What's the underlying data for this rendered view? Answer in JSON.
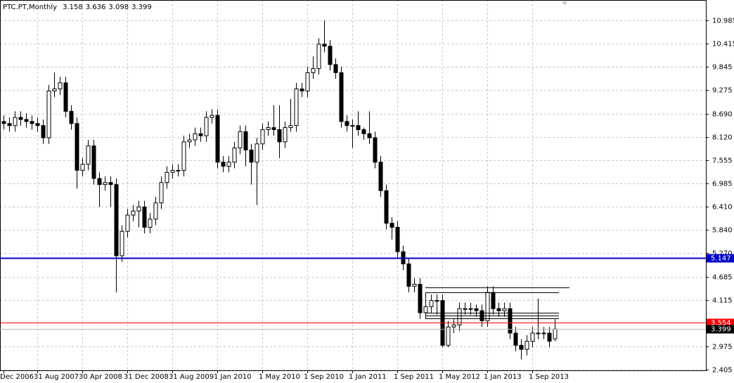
{
  "chart_data": {
    "type": "candlestick",
    "title": "PTC.PT,Monthly",
    "categories": [
      "Dec 2006",
      null,
      null,
      null,
      null,
      null,
      "31 Aug 2007",
      null,
      null,
      null,
      null,
      null,
      null,
      null,
      "30 Apr 2008",
      null,
      null,
      null,
      null,
      null,
      null,
      null,
      "31 Dec 2008",
      null,
      null,
      null,
      null,
      null,
      null,
      null,
      "31 Aug 2009",
      null,
      null,
      null,
      null,
      null,
      null,
      null,
      "1 Jan 2010",
      null,
      null,
      null,
      null,
      null,
      null,
      null,
      "1 May 2010",
      null,
      null,
      null,
      null,
      null,
      null,
      null,
      "1 Sep 2010",
      null,
      null,
      null,
      null,
      null,
      null,
      null,
      "1 Jan 2011",
      null,
      null,
      null,
      null,
      null,
      null,
      null,
      "1 Sep 2011",
      null,
      null,
      null,
      null,
      null,
      null,
      null,
      "1 May 2012",
      null,
      null,
      null,
      null,
      null,
      null,
      null,
      "1 Jan 2013",
      null,
      null,
      null,
      null,
      null,
      null,
      null,
      "1 Sep 2013",
      null,
      null,
      null,
      null
    ],
    "open": [
      8.5,
      8.45,
      8.4,
      8.6,
      8.55,
      8.5,
      8.45,
      8.4,
      8.1,
      9.25,
      9.3,
      9.45,
      8.75,
      8.45,
      7.3,
      7.45,
      7.9,
      7.1,
      6.95,
      7.0,
      6.95,
      5.2,
      5.8,
      6.2,
      6.3,
      6.4,
      5.9,
      6.1,
      6.5,
      7.0,
      7.25,
      7.3,
      7.3,
      8.0,
      8.05,
      8.2,
      8.15,
      8.6,
      8.65,
      7.5,
      7.4,
      7.5,
      7.85,
      8.25,
      7.8,
      7.5,
      7.95,
      8.3,
      8.35,
      8.3,
      8.0,
      8.35,
      8.4,
      9.3,
      9.25,
      9.7,
      9.8,
      10.4,
      10.35,
      9.9,
      9.7,
      8.5,
      8.4,
      8.4,
      8.3,
      8.2,
      8.1,
      7.5,
      6.8,
      6.0,
      5.9,
      5.3,
      5.0,
      4.45,
      4.5,
      3.8,
      3.95,
      4.1,
      4.1,
      3.0,
      3.45,
      3.5,
      3.9,
      3.9,
      3.9,
      3.85,
      3.6,
      4.3,
      3.9,
      3.85,
      3.9,
      3.3,
      3.0,
      2.9,
      3.1,
      3.3,
      3.3,
      3.3,
      3.158
    ],
    "high": [
      8.65,
      8.6,
      8.75,
      8.75,
      8.7,
      8.65,
      8.6,
      8.55,
      9.4,
      9.7,
      9.6,
      9.6,
      8.9,
      8.6,
      7.6,
      8.05,
      8.05,
      7.25,
      7.15,
      7.15,
      7.1,
      5.95,
      6.35,
      6.45,
      6.55,
      6.55,
      6.25,
      6.65,
      7.15,
      7.4,
      7.45,
      7.45,
      8.15,
      8.2,
      8.35,
      8.35,
      8.75,
      8.8,
      8.8,
      7.65,
      7.65,
      8.0,
      8.4,
      8.4,
      7.95,
      8.1,
      8.45,
      8.5,
      8.9,
      8.9,
      8.5,
      9.05,
      9.45,
      9.45,
      9.85,
      10.1,
      10.55,
      10.98,
      10.5,
      10.05,
      9.85,
      8.65,
      8.55,
      8.75,
      8.35,
      8.75,
      8.25,
      7.65,
      6.95,
      6.15,
      6.05,
      5.45,
      5.15,
      4.65,
      4.65,
      4.3,
      4.25,
      4.25,
      4.25,
      3.6,
      3.65,
      4.05,
      4.05,
      4.05,
      4.0,
      4.0,
      4.45,
      4.45,
      4.05,
      4.05,
      4.05,
      3.45,
      3.15,
      3.25,
      3.45,
      4.15,
      3.45,
      3.45,
      3.636
    ],
    "low": [
      8.3,
      8.25,
      8.25,
      8.4,
      8.35,
      8.3,
      8.25,
      7.95,
      7.95,
      9.1,
      9.15,
      8.6,
      8.3,
      6.85,
      7.15,
      7.3,
      6.95,
      6.4,
      6.8,
      6.4,
      4.3,
      5.05,
      5.65,
      6.05,
      5.9,
      5.75,
      5.75,
      5.95,
      6.35,
      6.85,
      7.1,
      7.15,
      7.15,
      7.85,
      7.9,
      8.0,
      8.0,
      8.45,
      7.35,
      7.25,
      7.25,
      7.35,
      7.7,
      7.4,
      6.95,
      6.45,
      7.8,
      8.15,
      8.15,
      7.6,
      7.85,
      8.25,
      8.25,
      9.1,
      9.1,
      9.55,
      9.65,
      10.2,
      9.75,
      9.55,
      8.35,
      8.25,
      7.85,
      8.15,
      8.05,
      7.95,
      7.35,
      6.65,
      5.85,
      5.6,
      5.15,
      4.85,
      4.3,
      4.3,
      3.65,
      3.65,
      3.8,
      3.75,
      2.95,
      2.95,
      3.3,
      3.35,
      3.75,
      3.75,
      3.7,
      3.45,
      3.45,
      3.75,
      3.7,
      3.7,
      3.15,
      2.85,
      2.65,
      2.75,
      2.95,
      3.15,
      3.15,
      2.95,
      3.098
    ],
    "close": [
      8.45,
      8.4,
      8.6,
      8.55,
      8.5,
      8.45,
      8.4,
      8.1,
      9.25,
      9.3,
      9.45,
      8.75,
      8.45,
      7.3,
      7.45,
      7.9,
      7.1,
      6.95,
      7.0,
      6.95,
      5.2,
      5.8,
      6.2,
      6.3,
      6.4,
      5.9,
      6.1,
      6.5,
      7.0,
      7.25,
      7.3,
      7.3,
      8.0,
      8.05,
      8.2,
      8.15,
      8.6,
      8.65,
      7.5,
      7.4,
      7.5,
      7.85,
      8.25,
      7.8,
      7.5,
      7.95,
      8.3,
      8.35,
      8.3,
      8.0,
      8.35,
      8.4,
      9.3,
      9.25,
      9.7,
      9.8,
      10.4,
      10.35,
      9.9,
      9.7,
      8.5,
      8.4,
      8.4,
      8.3,
      8.2,
      8.1,
      7.5,
      6.8,
      6.0,
      5.9,
      5.3,
      5.0,
      4.45,
      4.5,
      3.8,
      3.95,
      4.1,
      4.1,
      3.0,
      3.45,
      3.5,
      3.9,
      3.9,
      3.9,
      3.85,
      3.6,
      4.3,
      3.9,
      3.85,
      3.9,
      3.3,
      3.0,
      2.9,
      3.1,
      3.3,
      3.3,
      3.3,
      3.1,
      3.399
    ],
    "ylim": [
      2.384,
      11.486
    ],
    "yticks": [
      10.985,
      10.415,
      9.845,
      9.275,
      {
        "value": 8.69,
        "label": "8.690"
      },
      {
        "value": 8.12,
        "label": "8.120"
      },
      7.555,
      6.985,
      {
        "value": 6.41,
        "label": "6.410"
      },
      {
        "value": 5.84,
        "label": "5.840"
      },
      {
        "value": 5.27,
        "label": "5.270"
      },
      4.685,
      4.115,
      2.975,
      2.405
    ],
    "levels": [
      {
        "value": 5.147,
        "color": "#0000c8"
      },
      {
        "value": 3.554,
        "color": "#ff0000"
      },
      {
        "value": 3.399,
        "color": "#b4b4b4"
      }
    ],
    "trend_levels": [
      4.42,
      4.3,
      3.8,
      3.73,
      3.66
    ],
    "grid": true
  }
}
